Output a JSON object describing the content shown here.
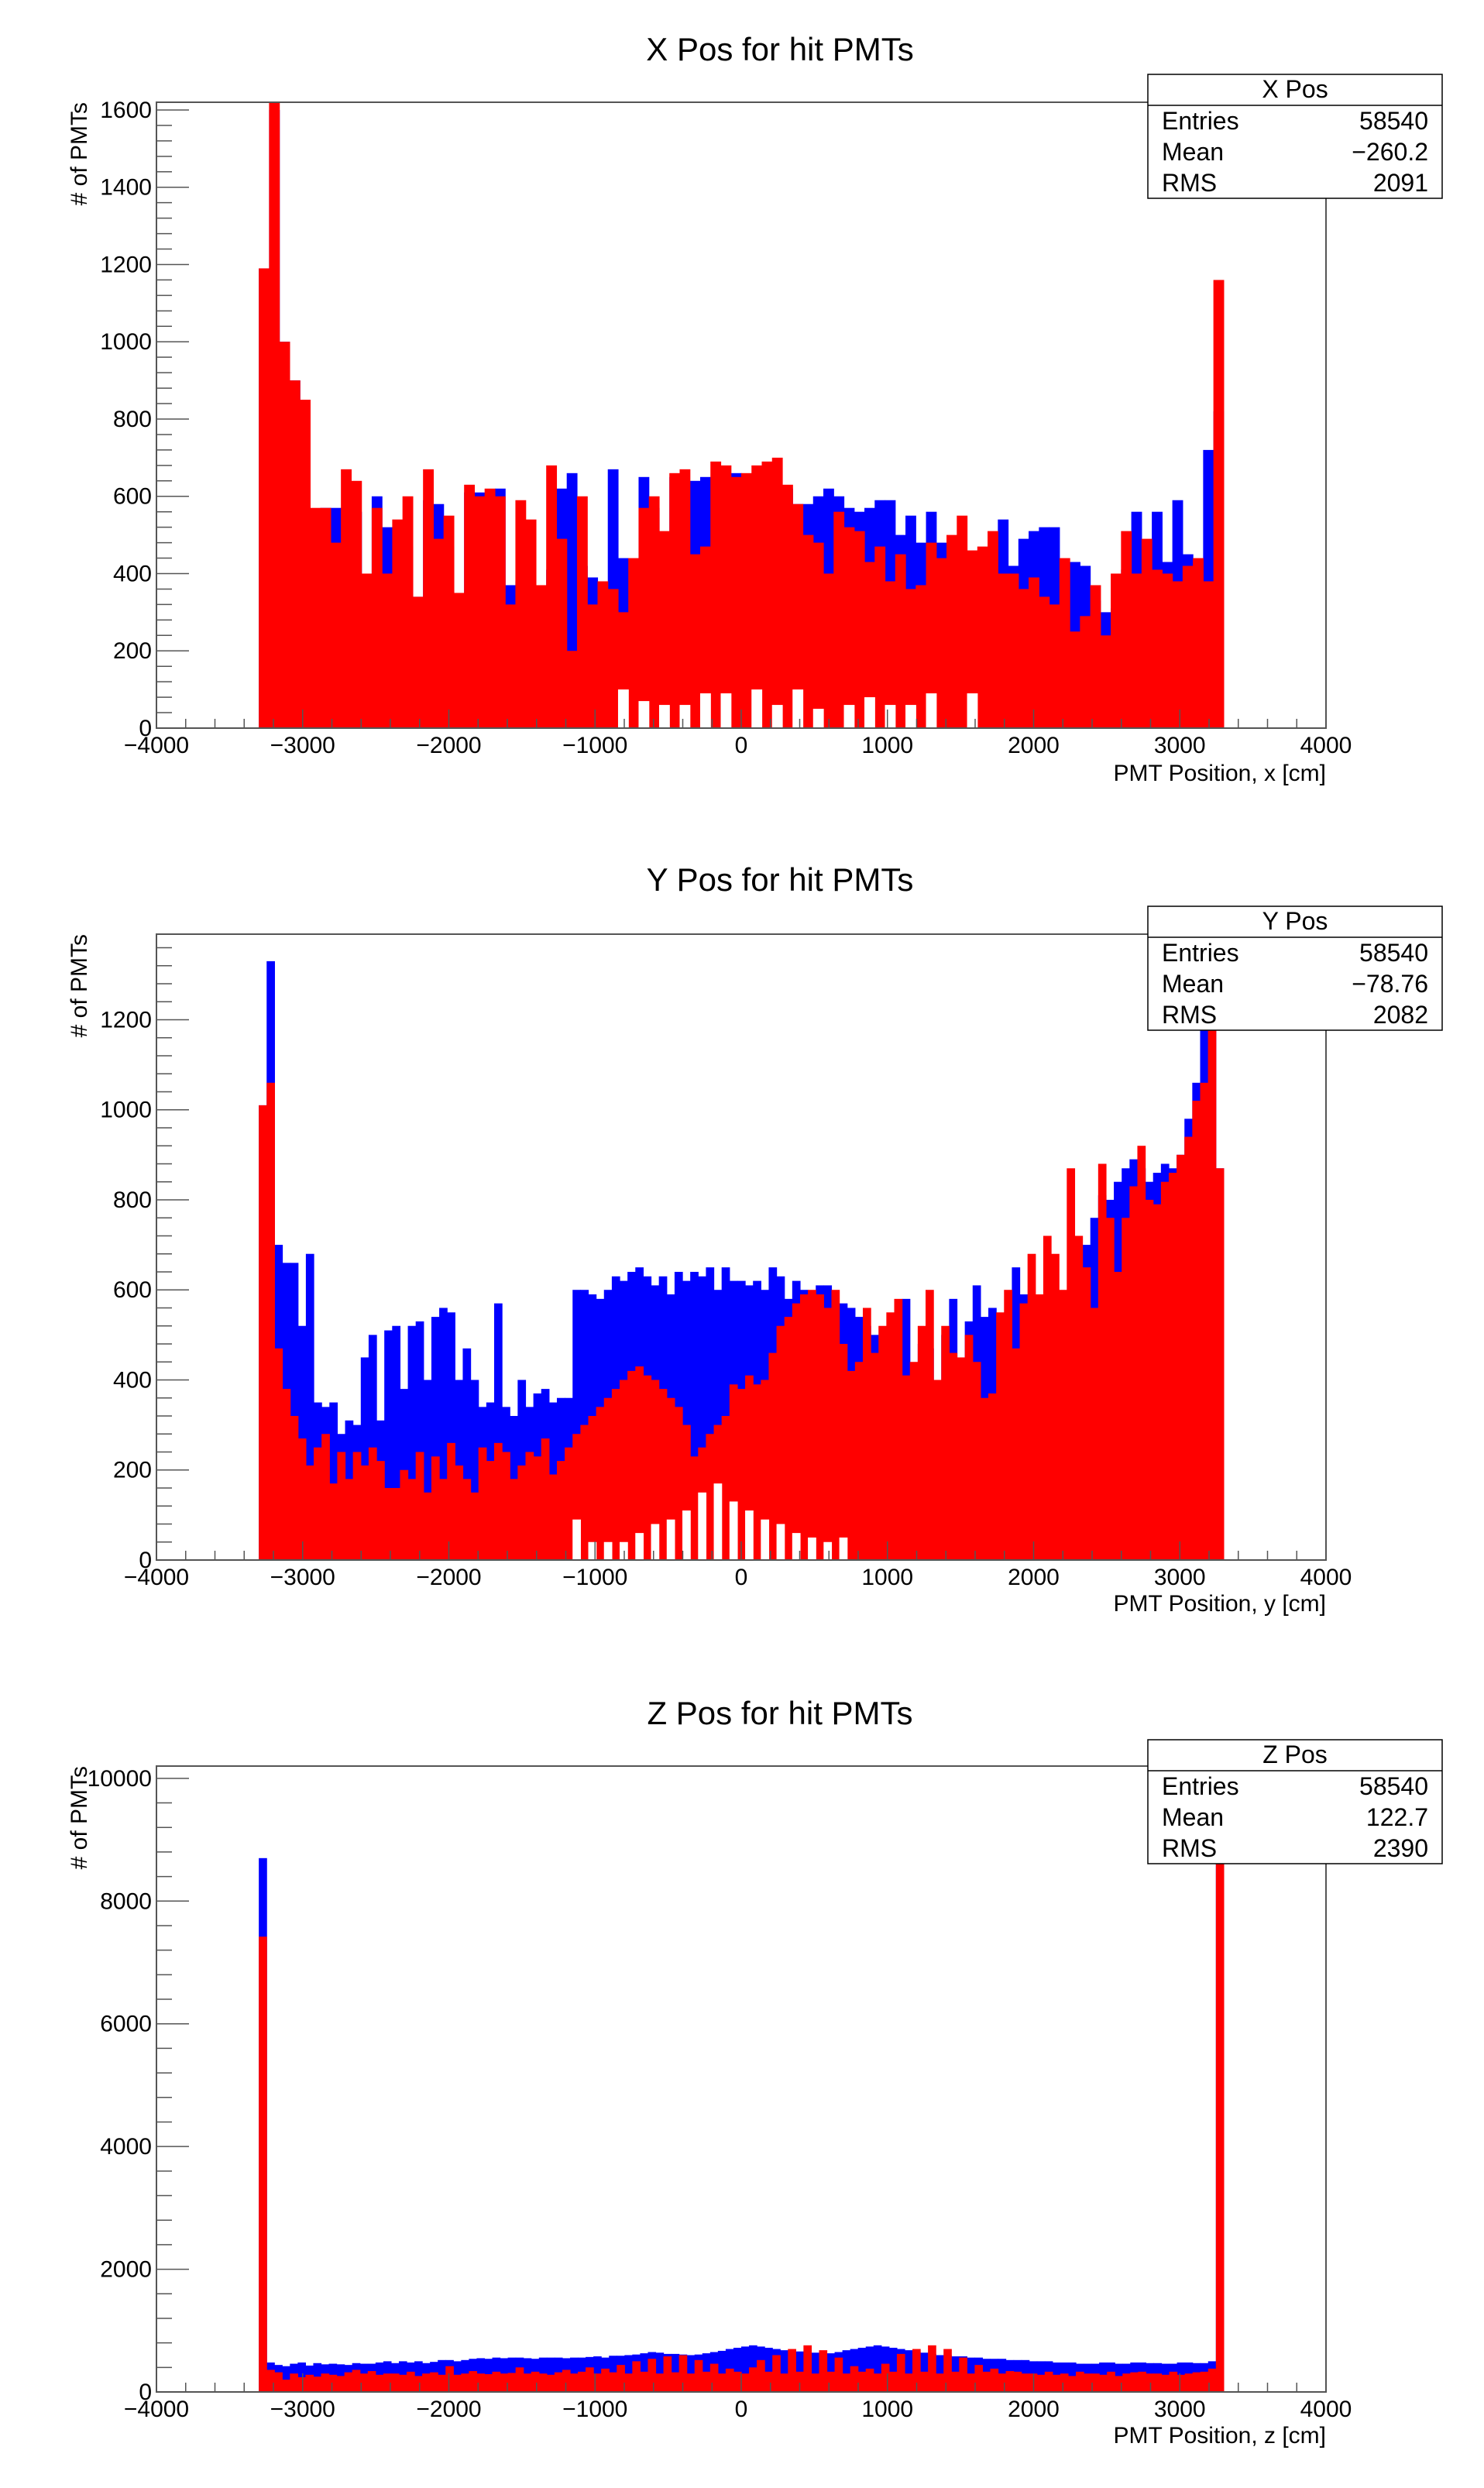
{
  "colors": {
    "blue": "#0000ff",
    "red": "#ff0000",
    "axis": "#000000",
    "frame": "#555555"
  },
  "chart_data": [
    {
      "type": "bar",
      "title": "X Pos for hit PMTs",
      "xlabel": "PMT Position, x [cm]",
      "ylabel": "# of PMTs",
      "xlim": [
        -4000,
        4000
      ],
      "ylim": [
        0,
        1620
      ],
      "xticks": [
        -4000,
        -3000,
        -2000,
        -1000,
        0,
        1000,
        2000,
        3000,
        4000
      ],
      "xtick_labels": [
        "−4000",
        "−3000",
        "−2000",
        "−1000",
        "0",
        "1000",
        "2000",
        "3000",
        "4000"
      ],
      "yticks": [
        0,
        200,
        400,
        600,
        800,
        1000,
        1200,
        1400,
        1600
      ],
      "ytick_labels": [
        "0",
        "200",
        "400",
        "600",
        "800",
        "1000",
        "1200",
        "1400",
        "1600"
      ],
      "legend_position": "top-right",
      "stats": {
        "name": "X Pos",
        "rows": [
          [
            "Entries",
            "58540"
          ],
          [
            "Mean",
            "−260.2"
          ],
          [
            "RMS",
            "2091"
          ]
        ]
      },
      "bin_range": [
        -3300,
        3300
      ],
      "series": [
        {
          "name": "",
          "color": "#0000ff",
          "values": [
            1190,
            1600,
            1000,
            900,
            620,
            420,
            570,
            570,
            480,
            560,
            370,
            600,
            520,
            410,
            470,
            340,
            590,
            580,
            470,
            180,
            610,
            610,
            580,
            620,
            370,
            380,
            340,
            150,
            410,
            620,
            660,
            420,
            390,
            200,
            670,
            440,
            150,
            650,
            570,
            380,
            650,
            600,
            640,
            650,
            620,
            620,
            660,
            600,
            620,
            570,
            620,
            620,
            580,
            580,
            600,
            620,
            600,
            570,
            560,
            570,
            590,
            590,
            500,
            550,
            480,
            560,
            480,
            410,
            370,
            440,
            410,
            210,
            540,
            420,
            490,
            510,
            520,
            520,
            350,
            430,
            420,
            330,
            300,
            310,
            410,
            560,
            380,
            560,
            430,
            590,
            450,
            410,
            720,
            820
          ]
        },
        {
          "name": "",
          "color": "#ff0000",
          "values": [
            1190,
            1620,
            1000,
            900,
            850,
            570,
            570,
            480,
            670,
            640,
            400,
            570,
            400,
            540,
            600,
            340,
            670,
            490,
            550,
            350,
            630,
            600,
            620,
            600,
            320,
            590,
            540,
            370,
            680,
            490,
            200,
            600,
            320,
            380,
            360,
            300,
            440,
            570,
            600,
            510,
            660,
            670,
            450,
            470,
            690,
            680,
            650,
            660,
            680,
            690,
            700,
            630,
            580,
            500,
            480,
            400,
            560,
            520,
            510,
            430,
            470,
            380,
            450,
            360,
            370,
            480,
            440,
            500,
            550,
            460,
            470,
            510,
            400,
            400,
            360,
            390,
            340,
            320,
            440,
            250,
            290,
            370,
            240,
            400,
            510,
            400,
            490,
            410,
            400,
            380,
            420,
            440,
            380,
            1160
          ]
        },
        {
          "name": "",
          "color": "#ffffff",
          "values": [
            0,
            0,
            0,
            0,
            0,
            0,
            0,
            0,
            0,
            0,
            0,
            0,
            0,
            0,
            0,
            0,
            0,
            0,
            0,
            0,
            0,
            0,
            0,
            0,
            0,
            0,
            0,
            0,
            0,
            0,
            0,
            0,
            0,
            0,
            0,
            100,
            0,
            70,
            0,
            60,
            0,
            60,
            0,
            90,
            0,
            90,
            0,
            0,
            100,
            0,
            60,
            0,
            100,
            0,
            50,
            0,
            0,
            60,
            0,
            80,
            0,
            60,
            0,
            60,
            0,
            90,
            0,
            0,
            0,
            90,
            0,
            0,
            0,
            0,
            0,
            0,
            0,
            0,
            0,
            0,
            0,
            0,
            0,
            0,
            0,
            0,
            0,
            0,
            0,
            0,
            0,
            0,
            0,
            0
          ]
        }
      ]
    },
    {
      "type": "bar",
      "title": "Y Pos for hit PMTs",
      "xlabel": "PMT Position, y [cm]",
      "ylabel": "# of PMTs",
      "xlim": [
        -4000,
        4000
      ],
      "ylim": [
        0,
        1390
      ],
      "xticks": [
        -4000,
        -3000,
        -2000,
        -1000,
        0,
        1000,
        2000,
        3000,
        4000
      ],
      "xtick_labels": [
        "−4000",
        "−3000",
        "−2000",
        "−1000",
        "0",
        "1000",
        "2000",
        "3000",
        "4000"
      ],
      "yticks": [
        0,
        200,
        400,
        600,
        800,
        1000,
        1200
      ],
      "ytick_labels": [
        "0",
        "200",
        "400",
        "600",
        "800",
        "1000",
        "1200"
      ],
      "legend_position": "top-right",
      "stats": {
        "name": "Y Pos",
        "rows": [
          [
            "Entries",
            "58540"
          ],
          [
            "Mean",
            "−78.76"
          ],
          [
            "RMS",
            "2082"
          ]
        ]
      },
      "bin_range": [
        -3300,
        3300
      ],
      "series": [
        {
          "name": "",
          "color": "#0000ff",
          "values": [
            1010,
            1330,
            700,
            660,
            660,
            520,
            680,
            350,
            340,
            350,
            280,
            310,
            300,
            450,
            500,
            310,
            510,
            520,
            380,
            520,
            530,
            400,
            540,
            560,
            550,
            400,
            470,
            400,
            340,
            350,
            570,
            340,
            320,
            400,
            340,
            370,
            380,
            350,
            360,
            360,
            600,
            600,
            590,
            580,
            600,
            630,
            620,
            640,
            650,
            630,
            610,
            630,
            590,
            640,
            620,
            640,
            630,
            650,
            600,
            650,
            620,
            620,
            610,
            620,
            600,
            650,
            630,
            580,
            620,
            600,
            590,
            610,
            610,
            570,
            570,
            560,
            540,
            520,
            500,
            480,
            460,
            430,
            580,
            400,
            480,
            470,
            360,
            500,
            580,
            430,
            530,
            610,
            540,
            560,
            530,
            550,
            650,
            590,
            520,
            430,
            540,
            400,
            420,
            440,
            400,
            700,
            760,
            810,
            800,
            840,
            870,
            890,
            870,
            840,
            860,
            880,
            870,
            900,
            980,
            1060,
            1200,
            1380,
            870
          ]
        },
        {
          "name": "",
          "color": "#ff0000",
          "values": [
            1010,
            1060,
            470,
            380,
            320,
            270,
            210,
            250,
            280,
            170,
            240,
            180,
            240,
            210,
            250,
            220,
            160,
            160,
            200,
            180,
            240,
            150,
            230,
            180,
            260,
            210,
            180,
            150,
            250,
            220,
            260,
            240,
            180,
            210,
            240,
            230,
            270,
            190,
            220,
            250,
            280,
            300,
            320,
            340,
            360,
            380,
            400,
            420,
            430,
            410,
            400,
            380,
            360,
            340,
            300,
            230,
            250,
            280,
            300,
            320,
            390,
            380,
            410,
            390,
            400,
            460,
            520,
            540,
            570,
            590,
            600,
            590,
            560,
            600,
            480,
            420,
            440,
            560,
            460,
            520,
            550,
            580,
            410,
            440,
            520,
            600,
            400,
            520,
            460,
            450,
            500,
            440,
            360,
            370,
            550,
            600,
            470,
            570,
            680,
            590,
            720,
            680,
            600,
            870,
            720,
            650,
            560,
            880,
            760,
            640,
            760,
            830,
            920,
            800,
            790,
            840,
            860,
            900,
            940,
            1020,
            1060,
            1380,
            870
          ]
        },
        {
          "name": "",
          "color": "#ffffff",
          "values": [
            0,
            0,
            0,
            0,
            0,
            0,
            0,
            0,
            0,
            0,
            0,
            0,
            0,
            0,
            0,
            0,
            0,
            0,
            0,
            0,
            0,
            0,
            0,
            0,
            0,
            0,
            0,
            0,
            0,
            0,
            0,
            0,
            0,
            0,
            0,
            0,
            0,
            0,
            0,
            0,
            90,
            0,
            40,
            0,
            40,
            0,
            40,
            0,
            60,
            0,
            80,
            0,
            90,
            0,
            110,
            0,
            150,
            0,
            170,
            0,
            130,
            0,
            110,
            0,
            90,
            0,
            80,
            0,
            60,
            0,
            50,
            0,
            40,
            0,
            50,
            0,
            0,
            0,
            0,
            0,
            0,
            0,
            0,
            0,
            0,
            0,
            0,
            0,
            0,
            0,
            0,
            0,
            0,
            0,
            0,
            0,
            0,
            0,
            0,
            0,
            0,
            0,
            0,
            0,
            0,
            0,
            0,
            0,
            0,
            0,
            0,
            0,
            0,
            0,
            0,
            0,
            0,
            0,
            0,
            0,
            0,
            0,
            0
          ]
        }
      ]
    },
    {
      "type": "bar",
      "title": "Z Pos for hit PMTs",
      "xlabel": "PMT Position, z [cm]",
      "ylabel": "# of PMTs",
      "xlim": [
        -4000,
        4000
      ],
      "ylim": [
        0,
        10200
      ],
      "xticks": [
        -4000,
        -3000,
        -2000,
        -1000,
        0,
        1000,
        2000,
        3000,
        4000
      ],
      "xtick_labels": [
        "−4000",
        "−3000",
        "−2000",
        "−1000",
        "0",
        "1000",
        "2000",
        "3000",
        "4000"
      ],
      "yticks": [
        0,
        2000,
        4000,
        6000,
        8000,
        10000
      ],
      "ytick_labels": [
        "0",
        "2000",
        "4000",
        "6000",
        "8000",
        "10000"
      ],
      "legend_position": "top-right",
      "stats": {
        "name": "Z Pos",
        "rows": [
          [
            "Entries",
            "58540"
          ],
          [
            "Mean",
            "122.7"
          ],
          [
            "RMS",
            "2390"
          ]
        ]
      },
      "bin_range": [
        -3300,
        3300
      ],
      "series": [
        {
          "name": "",
          "color": "#0000ff",
          "values": [
            8700,
            480,
            440,
            420,
            460,
            480,
            430,
            470,
            450,
            460,
            450,
            440,
            470,
            460,
            460,
            480,
            500,
            470,
            500,
            480,
            500,
            470,
            490,
            520,
            520,
            500,
            520,
            540,
            550,
            540,
            560,
            550,
            560,
            560,
            550,
            540,
            560,
            560,
            560,
            550,
            560,
            560,
            570,
            580,
            560,
            590,
            590,
            600,
            610,
            630,
            650,
            640,
            620,
            620,
            610,
            600,
            610,
            630,
            650,
            670,
            700,
            720,
            740,
            760,
            740,
            720,
            700,
            680,
            680,
            660,
            650,
            640,
            630,
            630,
            650,
            680,
            700,
            720,
            740,
            760,
            740,
            720,
            700,
            680,
            660,
            640,
            620,
            600,
            600,
            580,
            580,
            560,
            560,
            540,
            540,
            540,
            520,
            520,
            520,
            500,
            500,
            500,
            480,
            480,
            480,
            460,
            460,
            460,
            480,
            480,
            460,
            460,
            480,
            480,
            470,
            470,
            460,
            460,
            480,
            480,
            470,
            470,
            500,
            10000
          ]
        },
        {
          "name": "",
          "color": "#ff0000",
          "values": [
            7420,
            360,
            320,
            200,
            300,
            240,
            280,
            250,
            300,
            280,
            260,
            320,
            360,
            300,
            340,
            280,
            300,
            300,
            280,
            330,
            260,
            300,
            320,
            280,
            420,
            280,
            300,
            340,
            300,
            290,
            330,
            300,
            310,
            400,
            300,
            330,
            300,
            280,
            320,
            360,
            300,
            330,
            400,
            300,
            380,
            320,
            440,
            300,
            500,
            330,
            540,
            300,
            580,
            320,
            600,
            300,
            520,
            330,
            460,
            300,
            380,
            330,
            300,
            400,
            520,
            330,
            600,
            300,
            700,
            330,
            760,
            300,
            680,
            330,
            560,
            300,
            420,
            330,
            380,
            300,
            460,
            330,
            620,
            300,
            700,
            330,
            760,
            300,
            700,
            330,
            560,
            300,
            440,
            330,
            380,
            300,
            340,
            330,
            300,
            300,
            280,
            330,
            280,
            300,
            260,
            330,
            300,
            300,
            280,
            330,
            260,
            300,
            320,
            330,
            300,
            300,
            280,
            330,
            280,
            300,
            320,
            330,
            380,
            9600
          ]
        }
      ]
    }
  ]
}
